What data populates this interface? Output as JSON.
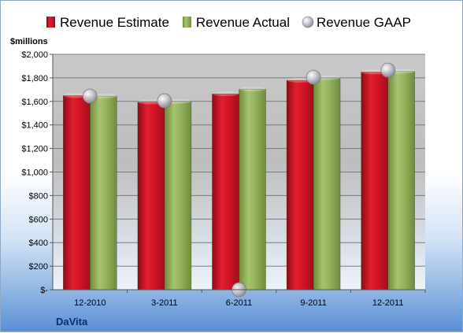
{
  "chart_data": {
    "type": "bar",
    "title": "",
    "unit_label": "$millions",
    "company": "DaVita",
    "categories": [
      "12-2010",
      "3-2011",
      "6-2011",
      "9-2011",
      "12-2011"
    ],
    "series": [
      {
        "name": "Revenue Estimate",
        "kind": "bar",
        "color": "#c8102e",
        "values": [
          1650,
          1595,
          1665,
          1780,
          1850
        ]
      },
      {
        "name": "Revenue Actual",
        "kind": "bar",
        "color": "#8fae5a",
        "values": [
          1645,
          1600,
          1705,
          1800,
          1855
        ]
      },
      {
        "name": "Revenue GAAP",
        "kind": "marker",
        "color": "#c0c0c8",
        "values": [
          1645,
          1605,
          0,
          1805,
          1865
        ]
      }
    ],
    "ylim": [
      0,
      2000
    ],
    "yticks": [
      0,
      200,
      400,
      600,
      800,
      1000,
      1200,
      1400,
      1600,
      1800,
      2000
    ],
    "ytick_labels": [
      "$-",
      "$200",
      "$400",
      "$600",
      "$800",
      "$1,000",
      "$1,200",
      "$1,400",
      "$1,600",
      "$1,800",
      "$2,000"
    ],
    "grid": true,
    "legend_position": "top"
  }
}
